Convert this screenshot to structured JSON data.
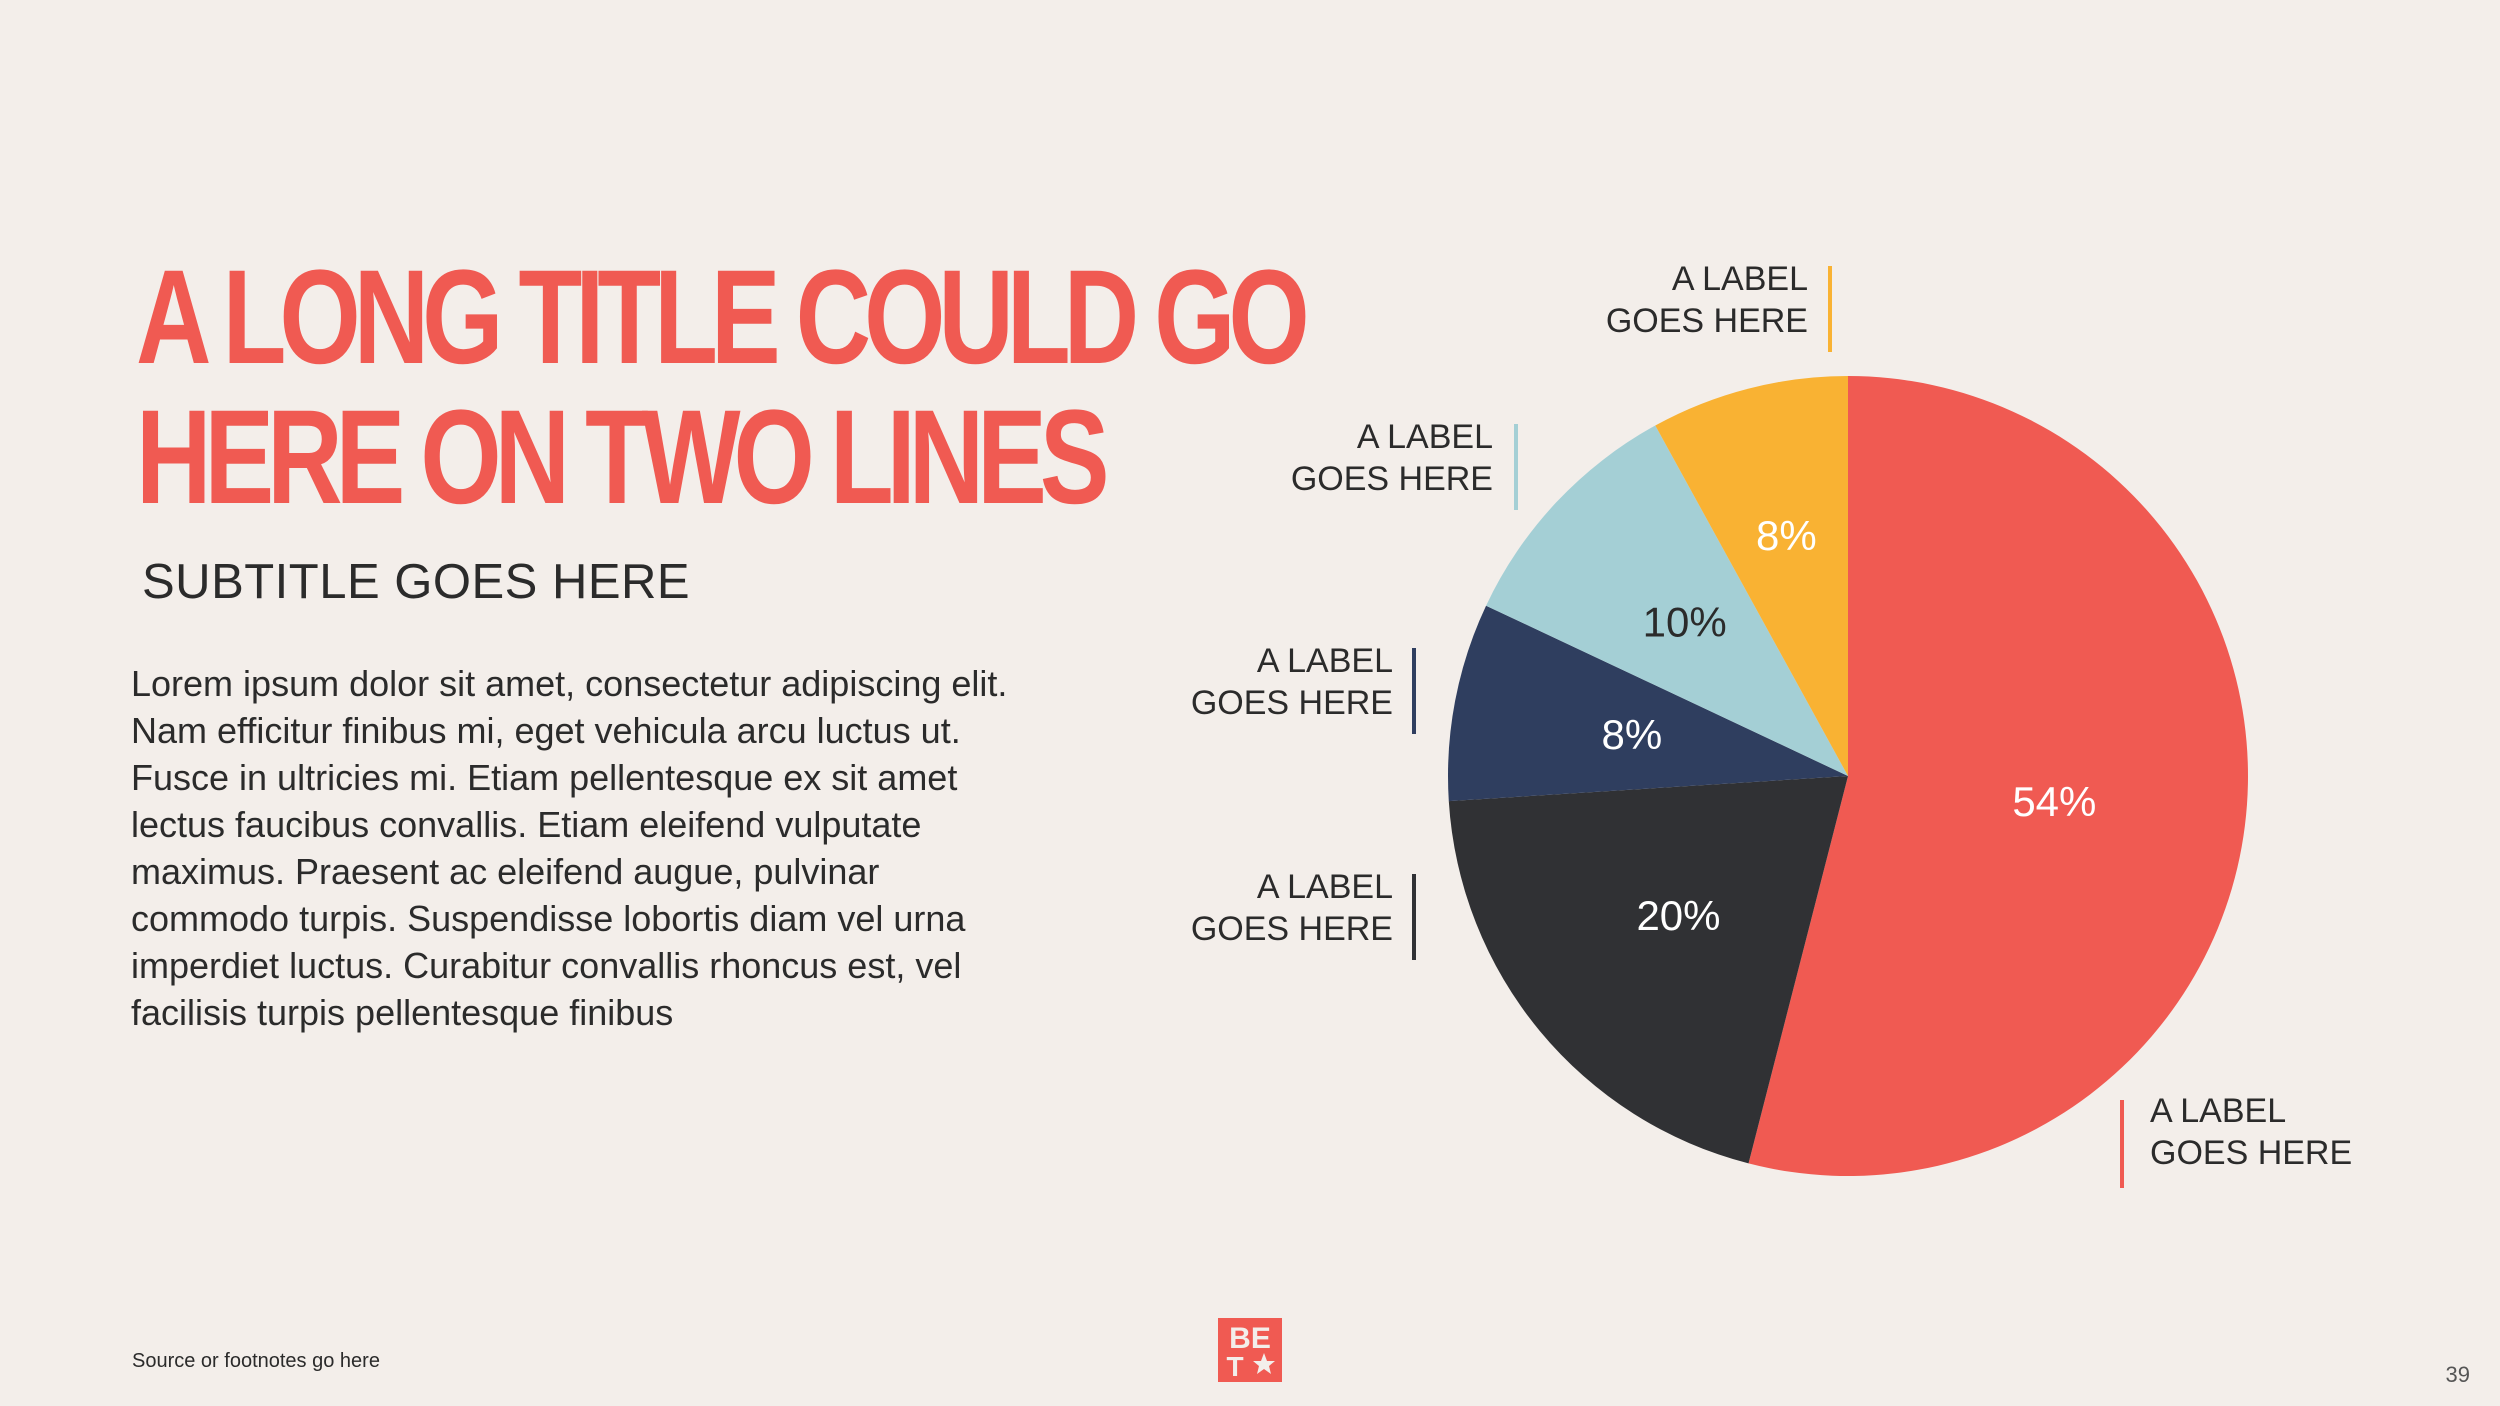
{
  "slide": {
    "title_lines": [
      "A LONG TITLE COULD GO",
      "HERE ON TWO LINES"
    ],
    "subtitle": "SUBTITLE GOES HERE",
    "body": "Lorem ipsum dolor sit amet, consectetur adipiscing elit. Nam efficitur finibus mi, eget vehicula arcu luctus ut. Fusce in ultricies mi. Etiam pellentesque ex sit amet lectus faucibus convallis. Etiam eleifend vulputate maximus. Praesent ac eleifend augue, pulvinar commodo turpis. Suspendisse lobortis diam vel urna imperdiet luctus. Curabitur convallis rhoncus est, vel facilisis turpis pellentesque finibus",
    "footnote": "Source or footnotes go here",
    "page_number": "39",
    "logo": {
      "letters_top": "BE",
      "letters_bottom": "T",
      "icon": "star-icon",
      "color": "#f05a52"
    }
  },
  "chart_data": {
    "type": "pie",
    "start": "12 o'clock",
    "direction": "clockwise",
    "slices": [
      {
        "label_lines": [
          "A LABEL",
          "GOES HERE"
        ],
        "value": 54,
        "display": "54%",
        "color": "#f05a52",
        "text_color": "#ffffff"
      },
      {
        "label_lines": [
          "A LABEL",
          "GOES HERE"
        ],
        "value": 20,
        "display": "20%",
        "color": "#303134",
        "text_color": "#ffffff"
      },
      {
        "label_lines": [
          "A LABEL",
          "GOES HERE"
        ],
        "value": 8,
        "display": "8%",
        "color": "#2f3e5f",
        "text_color": "#ffffff"
      },
      {
        "label_lines": [
          "A LABEL",
          "GOES HERE"
        ],
        "value": 10,
        "display": "10%",
        "color": "#a4cfd5",
        "text_color": "#2b2b2b"
      },
      {
        "label_lines": [
          "A LABEL",
          "GOES HERE"
        ],
        "value": 8,
        "display": "8%",
        "color": "#f9b233",
        "text_color": "#ffffff"
      }
    ]
  }
}
